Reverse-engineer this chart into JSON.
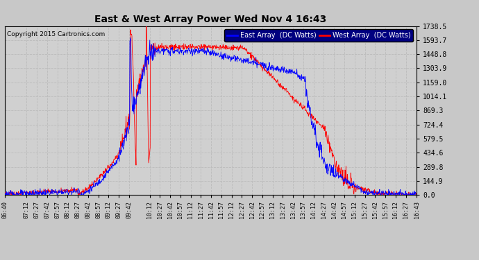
{
  "title": "East & West Array Power Wed Nov 4 16:43",
  "copyright": "Copyright 2015 Cartronics.com",
  "legend_east": "East Array  (DC Watts)",
  "legend_west": "West Array  (DC Watts)",
  "east_color": "#0000ff",
  "west_color": "#ff0000",
  "bg_color": "#c8c8c8",
  "plot_bg_color": "#d4d4d4",
  "grid_color": "#aaaaaa",
  "ylim": [
    0,
    1738.5
  ],
  "yticks": [
    0.0,
    144.9,
    289.8,
    434.6,
    579.5,
    724.4,
    869.3,
    1014.1,
    1159.0,
    1303.9,
    1448.8,
    1593.7,
    1738.5
  ],
  "ytick_labels": [
    "0.0",
    "144.9",
    "289.8",
    "434.6",
    "579.5",
    "724.4",
    "869.3",
    "1014.1",
    "1159.0",
    "1303.9",
    "1448.8",
    "1593.7",
    "1738.5"
  ],
  "xtick_labels": [
    "06:40",
    "07:12",
    "07:27",
    "07:42",
    "07:57",
    "08:12",
    "08:27",
    "08:42",
    "08:57",
    "09:12",
    "09:27",
    "09:42",
    "10:12",
    "10:27",
    "10:42",
    "10:57",
    "11:12",
    "11:27",
    "11:42",
    "11:57",
    "12:12",
    "12:27",
    "12:42",
    "12:57",
    "13:12",
    "13:27",
    "13:42",
    "13:57",
    "14:12",
    "14:27",
    "14:42",
    "14:57",
    "15:12",
    "15:27",
    "15:42",
    "15:57",
    "16:12",
    "16:27",
    "16:43"
  ]
}
